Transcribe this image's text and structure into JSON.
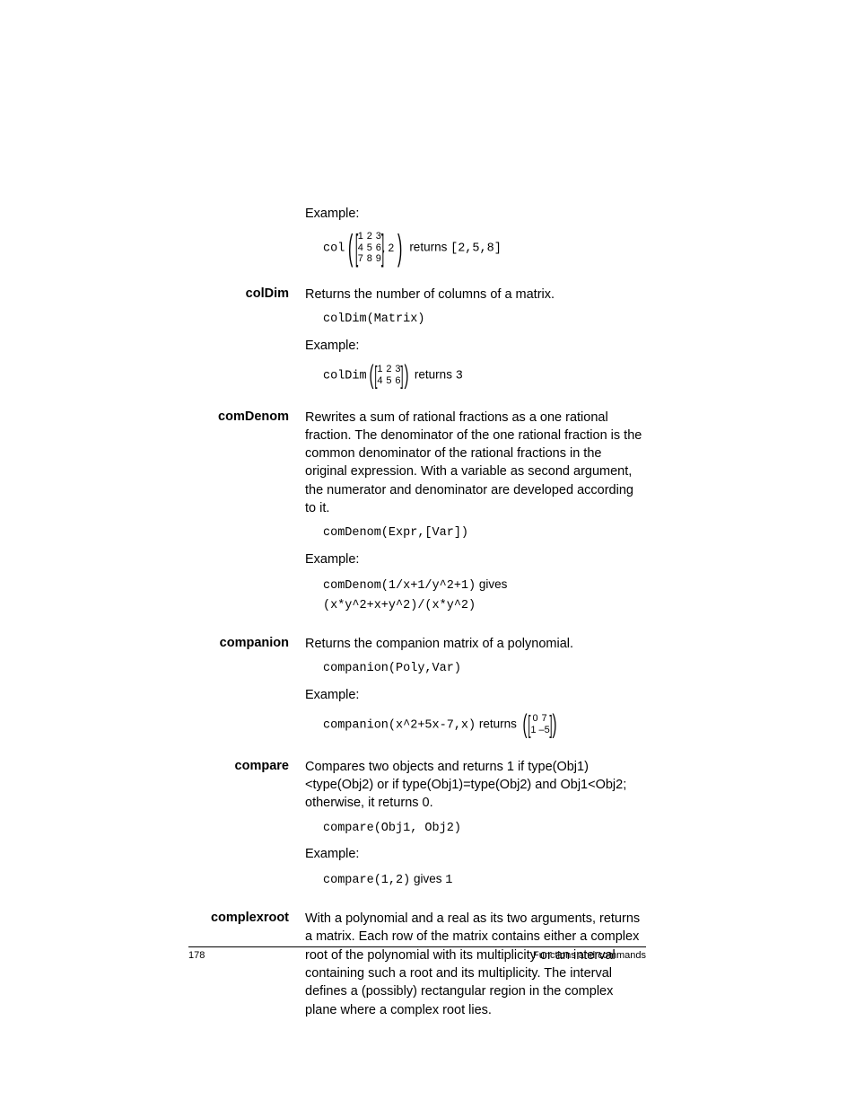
{
  "footer": {
    "page": "178",
    "section": "Functions and commands"
  },
  "intro": {
    "example_label": "Example:",
    "col_code_pre": "col",
    "col_matrix": [
      [
        "1",
        "2",
        "3"
      ],
      [
        "4",
        "5",
        "6"
      ],
      [
        "7",
        "8",
        "9"
      ]
    ],
    "col_arg2": ", 2",
    "col_returns": " returns ",
    "col_result": "[2,5,8]"
  },
  "colDim": {
    "name": "colDim",
    "desc": "Returns the number of columns of a matrix.",
    "syntax": "colDim(Matrix)",
    "example_label": "Example:",
    "code_pre": "colDim",
    "matrix": [
      [
        "1",
        "2",
        "3"
      ],
      [
        "4",
        "5",
        "6"
      ]
    ],
    "returns": " returns ",
    "result": "3"
  },
  "comDenom": {
    "name": "comDenom",
    "desc": "Rewrites a sum of rational fractions as a one rational fraction. The denominator of the one rational fraction is the common denominator of the rational fractions in the original expression. With a variable as second argument, the numerator and denominator are developed according to it.",
    "syntax": "comDenom(Expr,[Var])",
    "example_label": "Example:",
    "example_code1": "comDenom(1/x+1/y^2+1)",
    "gives": " gives ",
    "example_code2": "(x*y^2+x+y^2)/(x*y^2)"
  },
  "companion": {
    "name": "companion",
    "desc": "Returns the companion matrix of a polynomial.",
    "syntax": "companion(Poly,Var)",
    "example_label": "Example:",
    "example_code": "companion(x^2+5x-7,x)",
    "returns": " returns ",
    "matrix": [
      [
        "0",
        "7"
      ],
      [
        "1",
        "–5"
      ]
    ]
  },
  "compare": {
    "name": "compare",
    "desc": "Compares two objects and returns 1 if type(Obj1)<type(Obj2) or if type(Obj1)=type(Obj2) and Obj1<Obj2; otherwise, it returns 0.",
    "syntax": "compare(Obj1, Obj2)",
    "example_label": "Example:",
    "example_code": "compare(1,2)",
    "gives": " gives ",
    "result": "1"
  },
  "complexroot": {
    "name": "complexroot",
    "desc": "With a polynomial and a real as its two arguments, returns a matrix. Each row of the matrix contains either a complex root of the polynomial with its multiplicity or an interval containing such a root and its multiplicity. The interval defines a (possibly) rectangular region in the complex plane where a complex root lies."
  }
}
